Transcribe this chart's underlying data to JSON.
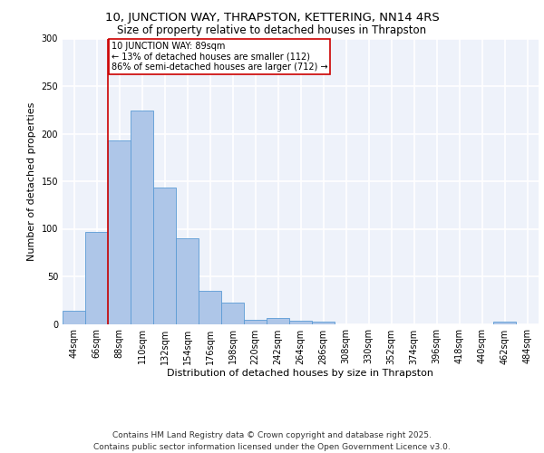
{
  "title": "10, JUNCTION WAY, THRAPSTON, KETTERING, NN14 4RS",
  "subtitle": "Size of property relative to detached houses in Thrapston",
  "xlabel": "Distribution of detached houses by size in Thrapston",
  "ylabel": "Number of detached properties",
  "footer_line1": "Contains HM Land Registry data © Crown copyright and database right 2025.",
  "footer_line2": "Contains public sector information licensed under the Open Government Licence v3.0.",
  "categories": [
    "44sqm",
    "66sqm",
    "88sqm",
    "110sqm",
    "132sqm",
    "154sqm",
    "176sqm",
    "198sqm",
    "220sqm",
    "242sqm",
    "264sqm",
    "286sqm",
    "308sqm",
    "330sqm",
    "352sqm",
    "374sqm",
    "396sqm",
    "418sqm",
    "440sqm",
    "462sqm",
    "484sqm"
  ],
  "values": [
    14,
    97,
    193,
    224,
    143,
    90,
    35,
    22,
    4,
    6,
    3,
    2,
    0,
    0,
    0,
    0,
    0,
    0,
    0,
    2,
    0
  ],
  "bar_color": "#aec6e8",
  "bar_edge_color": "#5b9bd5",
  "property_line_color": "#cc0000",
  "annotation_text": "10 JUNCTION WAY: 89sqm\n← 13% of detached houses are smaller (112)\n86% of semi-detached houses are larger (712) →",
  "annotation_box_color": "#cc0000",
  "ylim": [
    0,
    300
  ],
  "yticks": [
    0,
    50,
    100,
    150,
    200,
    250,
    300
  ],
  "background_color": "#eef2fa",
  "grid_color": "#ffffff",
  "title_fontsize": 9.5,
  "subtitle_fontsize": 8.5,
  "axis_label_fontsize": 8,
  "tick_fontsize": 7,
  "annotation_fontsize": 7,
  "footer_fontsize": 6.5
}
